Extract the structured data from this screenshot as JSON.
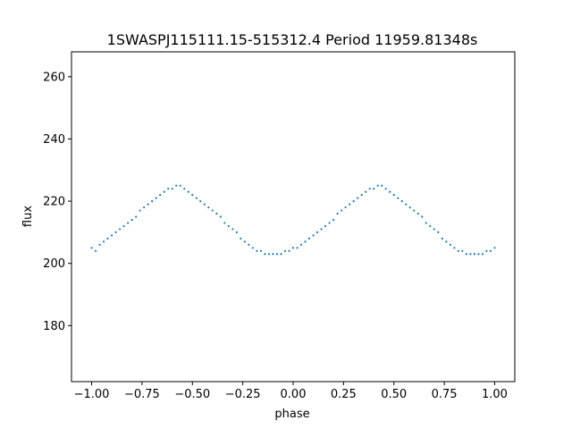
{
  "chart_data": {
    "type": "scatter",
    "title": "1SWASPJ115111.15-515312.4 Period 11959.81348s",
    "xlabel": "phase",
    "ylabel": "flux",
    "xlim": [
      -1.1,
      1.1
    ],
    "ylim": [
      162,
      268
    ],
    "grid": false,
    "point_color": "#1f77b4",
    "x_ticks": [
      {
        "value": -1.0,
        "label": "−1.00"
      },
      {
        "value": -0.75,
        "label": "−0.75"
      },
      {
        "value": -0.5,
        "label": "−0.50"
      },
      {
        "value": -0.25,
        "label": "−0.25"
      },
      {
        "value": 0.0,
        "label": "0.00"
      },
      {
        "value": 0.25,
        "label": "0.25"
      },
      {
        "value": 0.5,
        "label": "0.50"
      },
      {
        "value": 0.75,
        "label": "0.75"
      },
      {
        "value": 1.0,
        "label": "1.00"
      }
    ],
    "y_ticks": [
      {
        "value": 180,
        "label": "180"
      },
      {
        "value": 200,
        "label": "200"
      },
      {
        "value": 220,
        "label": "220"
      },
      {
        "value": 240,
        "label": "240"
      },
      {
        "value": 260,
        "label": "260"
      }
    ],
    "series": [
      {
        "x": [
          -1.0,
          -0.98,
          -0.96,
          -0.94,
          -0.92,
          -0.9,
          -0.88,
          -0.86,
          -0.84,
          -0.82,
          -0.8,
          -0.78,
          -0.76,
          -0.74,
          -0.72,
          -0.7,
          -0.68,
          -0.66,
          -0.64,
          -0.62,
          -0.6,
          -0.58,
          -0.56,
          -0.54,
          -0.52,
          -0.5,
          -0.48,
          -0.46,
          -0.44,
          -0.42,
          -0.4,
          -0.38,
          -0.36,
          -0.34,
          -0.32,
          -0.3,
          -0.28,
          -0.26,
          -0.24,
          -0.22,
          -0.2,
          -0.18,
          -0.16,
          -0.14,
          -0.12,
          -0.1,
          -0.08,
          -0.06,
          -0.04,
          -0.02,
          0.0,
          0.02,
          0.04,
          0.06,
          0.08,
          0.1,
          0.12,
          0.14,
          0.16,
          0.18,
          0.2,
          0.22,
          0.24,
          0.26,
          0.28,
          0.3,
          0.32,
          0.34,
          0.36,
          0.38,
          0.4,
          0.42,
          0.44,
          0.46,
          0.48,
          0.5,
          0.52,
          0.54,
          0.56,
          0.58,
          0.6,
          0.62,
          0.64,
          0.66,
          0.68,
          0.7,
          0.72,
          0.74,
          0.76,
          0.78,
          0.8,
          0.82,
          0.84,
          0.86,
          0.88,
          0.9,
          0.92,
          0.94,
          0.96,
          0.98,
          1.0
        ],
        "y": [
          205,
          204,
          206,
          207,
          208,
          209,
          210,
          211,
          212,
          213,
          214,
          215,
          217,
          218,
          219,
          220,
          221,
          222,
          223,
          224,
          224,
          225,
          225,
          224,
          223,
          222,
          221,
          220,
          219,
          218,
          217,
          216,
          215,
          213,
          212,
          211,
          210,
          208,
          207,
          206,
          205,
          204,
          204,
          203,
          203,
          203,
          203,
          203,
          204,
          204,
          205,
          205,
          206,
          207,
          208,
          209,
          210,
          211,
          212,
          213,
          214,
          216,
          217,
          218,
          219,
          220,
          221,
          222,
          223,
          224,
          224,
          225,
          225,
          224,
          223,
          222,
          221,
          220,
          219,
          218,
          217,
          216,
          215,
          213,
          212,
          211,
          210,
          208,
          207,
          206,
          205,
          204,
          204,
          203,
          203,
          203,
          203,
          203,
          204,
          204,
          205
        ]
      }
    ]
  }
}
